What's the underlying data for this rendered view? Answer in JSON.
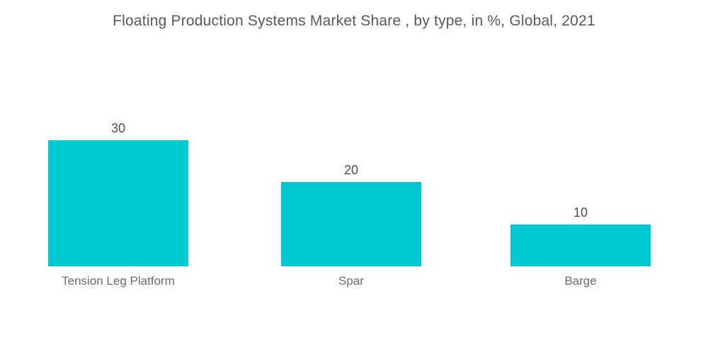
{
  "page": {
    "background": "#ffffff"
  },
  "chart_data": {
    "type": "bar",
    "title": "Floating Production Systems Market Share , by type, in %, Global, 2021",
    "categories": [
      "Tension Leg Platform",
      "Spar",
      "Barge"
    ],
    "values": [
      30,
      20,
      10
    ],
    "unit": "%",
    "xlabel": "",
    "ylabel": "",
    "ylim": [
      0,
      33
    ],
    "grid": false,
    "legend": false,
    "axes_visible": false,
    "bar_color": "#00CAD1",
    "title_color": "#58595B",
    "value_label_color": "#4D4E50",
    "category_label_color": "#6B6C6F"
  }
}
